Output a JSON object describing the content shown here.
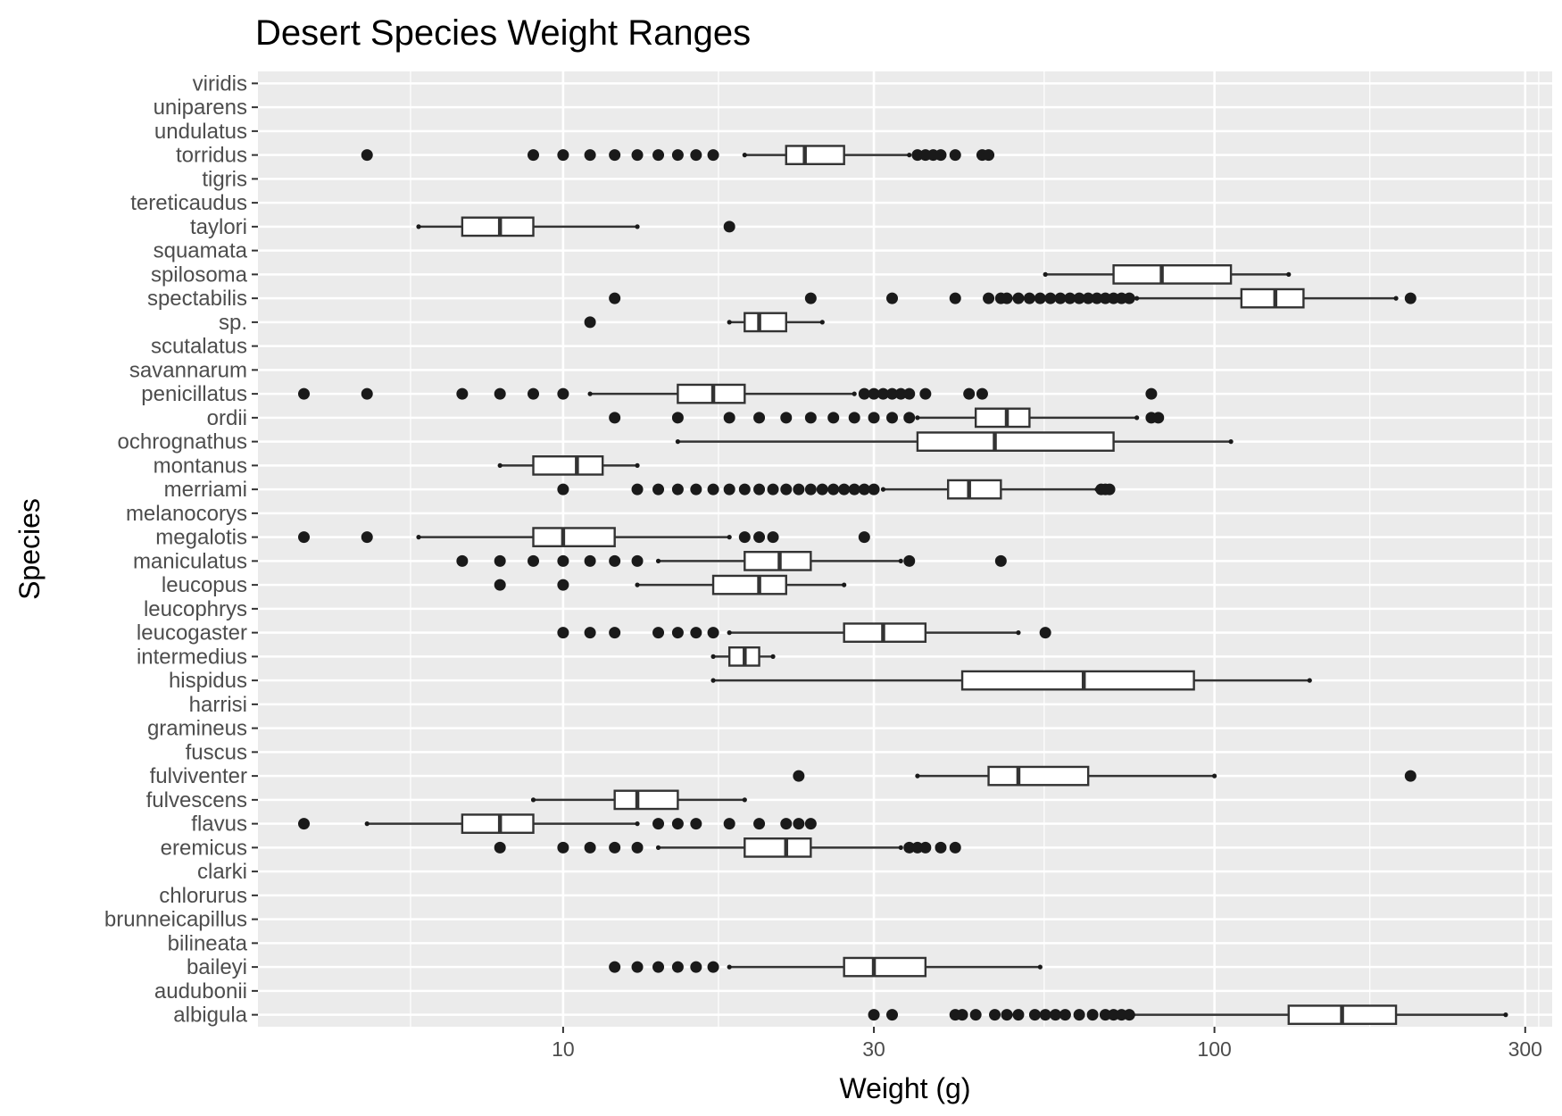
{
  "chart_data": {
    "type": "boxplot",
    "title": "Desert Species Weight Ranges",
    "xlabel": "Weight (g)",
    "ylabel": "Species",
    "x_scale": "log10",
    "xlim": [
      3.4,
      330
    ],
    "x_ticks": [
      10,
      30,
      100,
      300
    ],
    "x_tick_labels": [
      "10",
      "30",
      "100",
      "300"
    ],
    "grid": true,
    "colors": {
      "panel": "#ebebeb",
      "grid": "#ffffff",
      "box_fill": "#ffffff",
      "box_stroke": "#333333",
      "point": "#1a1a1a"
    },
    "categories": [
      "viridis",
      "uniparens",
      "undulatus",
      "torridus",
      "tigris",
      "tereticaudus",
      "taylori",
      "squamata",
      "spilosoma",
      "spectabilis",
      "sp.",
      "scutalatus",
      "savannarum",
      "penicillatus",
      "ordii",
      "ochrognathus",
      "montanus",
      "merriami",
      "melanocorys",
      "megalotis",
      "maniculatus",
      "leucopus",
      "leucophrys",
      "leucogaster",
      "intermedius",
      "hispidus",
      "harrisi",
      "gramineus",
      "fuscus",
      "fulviventer",
      "fulvescens",
      "flavus",
      "eremicus",
      "clarki",
      "chlorurus",
      "brunneicapillus",
      "bilineata",
      "baileyi",
      "audubonii",
      "albigula"
    ],
    "boxes": [
      {
        "species": "torridus",
        "whisker_low": 19,
        "q1": 22,
        "median": 23.5,
        "q3": 27,
        "whisker_high": 34,
        "outliers": [
          5,
          9,
          10,
          11,
          12,
          13,
          14,
          15,
          16,
          17,
          35,
          36,
          37,
          38,
          40,
          44,
          45
        ]
      },
      {
        "species": "taylori",
        "whisker_low": 6,
        "q1": 7,
        "median": 8,
        "q3": 9,
        "whisker_high": 13,
        "outliers": [
          18
        ]
      },
      {
        "species": "spilosoma",
        "whisker_low": 55,
        "q1": 70,
        "median": 83,
        "q3": 106,
        "whisker_high": 130,
        "outliers": []
      },
      {
        "species": "spectabilis",
        "whisker_low": 76,
        "q1": 110,
        "median": 124,
        "q3": 137,
        "whisker_high": 190,
        "outliers": [
          12,
          24,
          32,
          40,
          45,
          47,
          48,
          50,
          52,
          54,
          56,
          58,
          60,
          62,
          64,
          66,
          68,
          70,
          72,
          74,
          200
        ]
      },
      {
        "species": "sp.",
        "whisker_low": 18,
        "q1": 19,
        "median": 20,
        "q3": 22,
        "whisker_high": 25,
        "outliers": [
          11
        ]
      },
      {
        "species": "penicillatus",
        "whisker_low": 11,
        "q1": 15,
        "median": 17,
        "q3": 19,
        "whisker_high": 28,
        "outliers": [
          4,
          5,
          7,
          8,
          9,
          10,
          29,
          30,
          31,
          32,
          33,
          34,
          36,
          42,
          44,
          80
        ]
      },
      {
        "species": "ordii",
        "whisker_low": 35,
        "q1": 43,
        "median": 48,
        "q3": 52,
        "whisker_high": 76,
        "outliers": [
          12,
          15,
          18,
          20,
          22,
          24,
          26,
          28,
          30,
          32,
          34,
          80,
          82
        ]
      },
      {
        "species": "ochrognathus",
        "whisker_low": 15,
        "q1": 35,
        "median": 46,
        "q3": 70,
        "whisker_high": 106,
        "outliers": []
      },
      {
        "species": "montanus",
        "whisker_low": 8,
        "q1": 9,
        "median": 10.5,
        "q3": 11.5,
        "whisker_high": 13,
        "outliers": []
      },
      {
        "species": "merriami",
        "whisker_low": 31,
        "q1": 39,
        "median": 42,
        "q3": 47,
        "whisker_high": 66,
        "outliers": [
          10,
          13,
          14,
          15,
          16,
          17,
          18,
          19,
          20,
          21,
          22,
          23,
          24,
          25,
          26,
          27,
          28,
          29,
          30,
          67,
          68,
          69
        ]
      },
      {
        "species": "megalotis",
        "whisker_low": 6,
        "q1": 9,
        "median": 10,
        "q3": 12,
        "whisker_high": 18,
        "outliers": [
          4,
          5,
          19,
          20,
          21,
          29
        ]
      },
      {
        "species": "maniculatus",
        "whisker_low": 14,
        "q1": 19,
        "median": 21.5,
        "q3": 24,
        "whisker_high": 33,
        "outliers": [
          7,
          8,
          9,
          10,
          11,
          12,
          13,
          34,
          47
        ]
      },
      {
        "species": "leucopus",
        "whisker_low": 13,
        "q1": 17,
        "median": 20,
        "q3": 22,
        "whisker_high": 27,
        "outliers": [
          8,
          10
        ]
      },
      {
        "species": "leucogaster",
        "whisker_low": 18,
        "q1": 27,
        "median": 31,
        "q3": 36,
        "whisker_high": 50,
        "outliers": [
          10,
          11,
          12,
          14,
          15,
          16,
          17,
          55
        ]
      },
      {
        "species": "intermedius",
        "whisker_low": 17,
        "q1": 18,
        "median": 19,
        "q3": 20,
        "whisker_high": 21,
        "outliers": []
      },
      {
        "species": "hispidus",
        "whisker_low": 17,
        "q1": 41,
        "median": 63,
        "q3": 93,
        "whisker_high": 140,
        "outliers": []
      },
      {
        "species": "fulviventer",
        "whisker_low": 35,
        "q1": 45,
        "median": 50,
        "q3": 64,
        "whisker_high": 100,
        "outliers": [
          23,
          200
        ]
      },
      {
        "species": "fulvescens",
        "whisker_low": 9,
        "q1": 12,
        "median": 13,
        "q3": 15,
        "whisker_high": 19,
        "outliers": []
      },
      {
        "species": "flavus",
        "whisker_low": 5,
        "q1": 7,
        "median": 8,
        "q3": 9,
        "whisker_high": 13,
        "outliers": [
          4,
          14,
          15,
          16,
          18,
          20,
          22,
          23,
          24
        ]
      },
      {
        "species": "eremicus",
        "whisker_low": 14,
        "q1": 19,
        "median": 22,
        "q3": 24,
        "whisker_high": 33,
        "outliers": [
          8,
          10,
          11,
          12,
          13,
          34,
          35,
          36,
          38,
          40
        ]
      },
      {
        "species": "baileyi",
        "whisker_low": 18,
        "q1": 27,
        "median": 30,
        "q3": 36,
        "whisker_high": 54,
        "outliers": [
          12,
          13,
          14,
          15,
          16,
          17
        ]
      },
      {
        "species": "albigula",
        "whisker_low": 75,
        "q1": 130,
        "median": 157,
        "q3": 190,
        "whisker_high": 280,
        "outliers": [
          30,
          32,
          40,
          41,
          43,
          46,
          48,
          50,
          53,
          55,
          57,
          59,
          62,
          65,
          68,
          70,
          72,
          74
        ]
      }
    ]
  }
}
